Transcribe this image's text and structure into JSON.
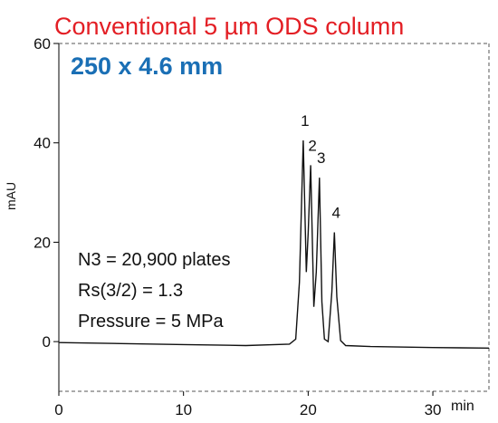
{
  "chart_data": {
    "type": "line",
    "title": "Conventional 5 µm ODS column",
    "subtitle": "250 x 4.6 mm",
    "xlabel": "min",
    "ylabel": "mAU",
    "xlim": [
      0,
      34.5
    ],
    "ylim": [
      -10,
      60
    ],
    "xticks": [
      0,
      10,
      20,
      30
    ],
    "yticks": [
      0,
      20,
      40,
      60
    ],
    "grid": false,
    "annotations": [
      "N3 = 20,900 plates",
      "Rs(3/2) = 1.3",
      "Pressure = 5 MPa"
    ],
    "peaks": [
      {
        "label": "1",
        "time": 19.6,
        "height": 40.5
      },
      {
        "label": "2",
        "time": 20.2,
        "height": 35.5
      },
      {
        "label": "3",
        "time": 20.9,
        "height": 33
      },
      {
        "label": "4",
        "time": 22.1,
        "height": 22
      }
    ],
    "series": [
      {
        "x": [
          0,
          5,
          10,
          15,
          18.5,
          19.0,
          19.3,
          19.6,
          19.85,
          20.0,
          20.2,
          20.45,
          20.65,
          20.9,
          21.1,
          21.3,
          21.6,
          21.9,
          22.1,
          22.3,
          22.6,
          23.0,
          25,
          30,
          34.5
        ],
        "y": [
          -0.2,
          -0.4,
          -0.6,
          -0.8,
          -0.5,
          0.5,
          12,
          40.5,
          14,
          22,
          35.5,
          7,
          14,
          33,
          8,
          0.5,
          0,
          10,
          22,
          9,
          0.2,
          -0.8,
          -1.0,
          -1.2,
          -1.3
        ]
      }
    ]
  }
}
